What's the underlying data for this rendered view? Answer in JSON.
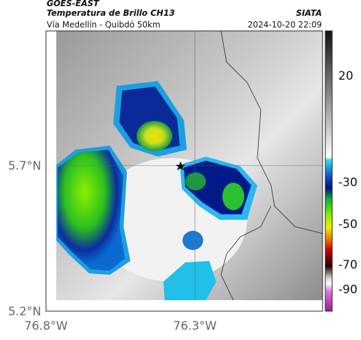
{
  "header": {
    "left_top": "GOES-EAST",
    "left_title": "Temperatura de Brillo CH13",
    "left_subtitle": "Vía Medellín - Quibdó 50km",
    "right_title": "SIATA",
    "right_subtitle": "2024-10-20 22:09"
  },
  "axes": {
    "lat_labels": [
      "5.7°N",
      "5.2°N"
    ],
    "lon_labels": [
      "76.8°W",
      "76.3°W"
    ]
  },
  "colorbar": {
    "labels": [
      "20",
      "-30",
      "-50",
      "-70",
      "-90"
    ]
  }
}
